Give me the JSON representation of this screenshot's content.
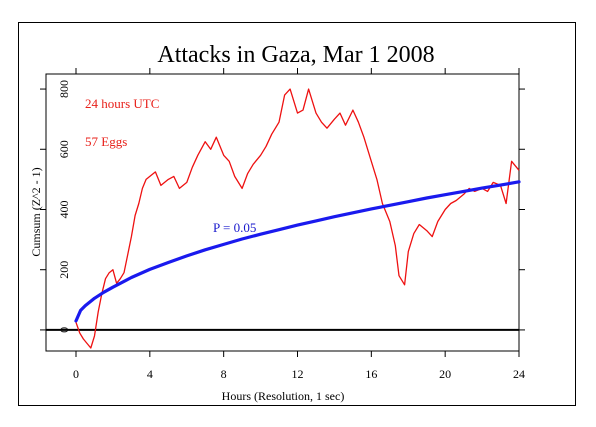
{
  "chart_data": {
    "type": "line",
    "title": "Attacks in Gaza, Mar 1 2008",
    "xlabel": "Hours (Resolution, 1 sec)",
    "ylabel": "Cumsum (Z^2 - 1)",
    "xlim": [
      0,
      24
    ],
    "ylim": [
      -70,
      850
    ],
    "xticks": [
      0,
      4,
      8,
      12,
      16,
      20,
      24
    ],
    "xtick_labels": [
      "0",
      "4",
      "8",
      "12",
      "16",
      "20",
      "24"
    ],
    "yticks": [
      0,
      200,
      400,
      600,
      800
    ],
    "ytick_labels": [
      "0",
      "200",
      "400",
      "600",
      "800"
    ],
    "annotations": [
      {
        "text": "24 hours UTC",
        "color": "#e8201a"
      },
      {
        "text": "57 Eggs",
        "color": "#e8201a"
      },
      {
        "text": "P = 0.05",
        "color": "#1a1acc"
      }
    ],
    "series": [
      {
        "color": "#ee1111",
        "x": [
          0,
          0.2,
          0.4,
          0.6,
          0.8,
          1.0,
          1.2,
          1.4,
          1.6,
          1.8,
          2.0,
          2.2,
          2.4,
          2.6,
          2.8,
          3.0,
          3.2,
          3.4,
          3.6,
          3.8,
          4.0,
          4.3,
          4.6,
          5.0,
          5.3,
          5.6,
          6.0,
          6.3,
          6.6,
          7.0,
          7.3,
          7.6,
          8.0,
          8.3,
          8.6,
          9.0,
          9.3,
          9.6,
          10.0,
          10.3,
          10.6,
          11.0,
          11.3,
          11.6,
          12.0,
          12.3,
          12.6,
          13.0,
          13.3,
          13.6,
          14.0,
          14.3,
          14.6,
          15.0,
          15.3,
          15.6,
          16.0,
          16.3,
          16.6,
          17.0,
          17.3,
          17.5,
          17.8,
          18.0,
          18.3,
          18.6,
          19.0,
          19.3,
          19.6,
          20.0,
          20.3,
          20.6,
          21.0,
          21.3,
          21.6,
          22.0,
          22.3,
          22.6,
          23.0,
          23.3,
          23.6,
          24.0
        ],
        "y": [
          25,
          -10,
          -30,
          -45,
          -60,
          -20,
          60,
          120,
          170,
          190,
          200,
          155,
          170,
          190,
          250,
          310,
          380,
          420,
          470,
          500,
          510,
          525,
          480,
          500,
          510,
          470,
          490,
          540,
          580,
          625,
          600,
          640,
          580,
          560,
          510,
          470,
          520,
          550,
          580,
          610,
          650,
          690,
          780,
          800,
          720,
          730,
          800,
          720,
          690,
          670,
          700,
          720,
          680,
          730,
          690,
          640,
          560,
          500,
          420,
          360,
          280,
          180,
          150,
          260,
          320,
          350,
          330,
          310,
          360,
          400,
          420,
          430,
          450,
          470,
          460,
          470,
          460,
          490,
          480,
          420,
          560,
          530
        ]
      },
      {
        "color": "#1a1aee",
        "x": [
          0,
          0.25,
          0.5,
          1,
          1.5,
          2,
          3,
          4,
          5,
          6,
          7,
          8,
          9,
          10,
          11,
          12,
          13,
          14,
          15,
          16,
          17,
          18,
          19,
          20,
          21,
          22,
          23,
          24
        ],
        "y": [
          30,
          65,
          80,
          105,
          125,
          142,
          174,
          201,
          224,
          246,
          266,
          284,
          302,
          318,
          333,
          348,
          362,
          376,
          389,
          402,
          414,
          426,
          438,
          449,
          460,
          471,
          481,
          492
        ]
      }
    ]
  }
}
